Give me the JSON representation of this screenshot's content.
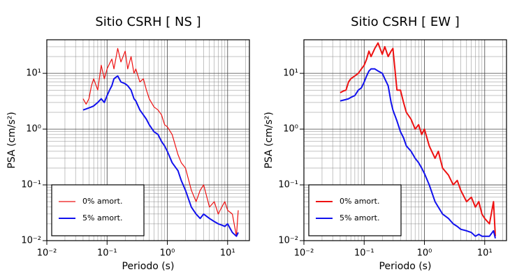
{
  "chart_data": [
    {
      "type": "line",
      "title": "Sitio CSRH [ NS ]",
      "xlabel": "Periodo (s)",
      "ylabel": "PSA (cm/s²)",
      "xscale": "log",
      "yscale": "log",
      "grid": true,
      "minor_grid": true,
      "legend": "lower left",
      "xlim": [
        0.01,
        23
      ],
      "ylim": [
        0.01,
        40
      ],
      "xticks": [
        {
          "value": 0.01,
          "label": "10⁻²"
        },
        {
          "value": 0.1,
          "label": "10⁻¹"
        },
        {
          "value": 1,
          "label": "10⁰"
        },
        {
          "value": 10,
          "label": "10¹"
        }
      ],
      "yticks": [
        {
          "value": 0.01,
          "label": "10⁻²"
        },
        {
          "value": 0.1,
          "label": "10⁻¹"
        },
        {
          "value": 1,
          "label": "10⁰"
        },
        {
          "value": 10,
          "label": "10¹"
        }
      ],
      "x": [
        0.04,
        0.045,
        0.05,
        0.055,
        0.06,
        0.07,
        0.08,
        0.09,
        0.1,
        0.11,
        0.12,
        0.13,
        0.15,
        0.17,
        0.2,
        0.22,
        0.25,
        0.28,
        0.3,
        0.35,
        0.4,
        0.45,
        0.5,
        0.6,
        0.7,
        0.8,
        0.9,
        1,
        1.2,
        1.5,
        1.7,
        2,
        2.5,
        3,
        3.5,
        4,
        5,
        6,
        7,
        8,
        9,
        10,
        12,
        14,
        15
      ],
      "series": [
        {
          "name": "0% amort.",
          "color": "#ee1111",
          "width": 1.2,
          "values": [
            3.5,
            2.8,
            3.5,
            6,
            8,
            5,
            14,
            8,
            12,
            15,
            18,
            12,
            28,
            16,
            25,
            12,
            20,
            10,
            12,
            7,
            8,
            5,
            3.5,
            2.5,
            2.2,
            1.8,
            1.2,
            1.1,
            0.8,
            0.35,
            0.25,
            0.2,
            0.08,
            0.05,
            0.08,
            0.1,
            0.04,
            0.05,
            0.03,
            0.04,
            0.05,
            0.035,
            0.03,
            0.012,
            0.035
          ]
        },
        {
          "name": "5% amort.",
          "color": "#1111ee",
          "width": 2,
          "values": [
            2.2,
            2.3,
            2.4,
            2.5,
            2.6,
            3,
            3.5,
            3,
            4,
            5,
            6,
            8,
            9,
            7,
            6.5,
            6,
            5,
            3.5,
            3.2,
            2.2,
            1.8,
            1.5,
            1.2,
            0.9,
            0.8,
            0.6,
            0.5,
            0.4,
            0.25,
            0.18,
            0.12,
            0.08,
            0.04,
            0.03,
            0.025,
            0.03,
            0.025,
            0.022,
            0.02,
            0.019,
            0.018,
            0.02,
            0.014,
            0.012,
            0.014
          ]
        }
      ]
    },
    {
      "type": "line",
      "title": "Sitio CSRH [ EW ]",
      "xlabel": "Periodo (s)",
      "ylabel": "PSA (cm/s²)",
      "xscale": "log",
      "yscale": "log",
      "grid": true,
      "minor_grid": true,
      "legend": "lower left",
      "xlim": [
        0.01,
        23
      ],
      "ylim": [
        0.01,
        40
      ],
      "xticks": [
        {
          "value": 0.01,
          "label": "10⁻²"
        },
        {
          "value": 0.1,
          "label": "10⁻¹"
        },
        {
          "value": 1,
          "label": "10⁰"
        },
        {
          "value": 10,
          "label": "10¹"
        }
      ],
      "yticks": [
        {
          "value": 0.01,
          "label": "10⁻²"
        },
        {
          "value": 0.1,
          "label": "10⁻¹"
        },
        {
          "value": 1,
          "label": "10⁰"
        },
        {
          "value": 10,
          "label": "10¹"
        }
      ],
      "x": [
        0.04,
        0.045,
        0.05,
        0.055,
        0.06,
        0.07,
        0.08,
        0.09,
        0.1,
        0.11,
        0.12,
        0.13,
        0.15,
        0.17,
        0.2,
        0.22,
        0.25,
        0.28,
        0.3,
        0.35,
        0.4,
        0.45,
        0.5,
        0.6,
        0.7,
        0.8,
        0.9,
        1,
        1.2,
        1.5,
        1.7,
        2,
        2.5,
        3,
        3.5,
        4,
        5,
        6,
        7,
        8,
        9,
        10,
        12,
        14,
        15
      ],
      "series": [
        {
          "name": "0% amort.",
          "color": "#ee1111",
          "width": 2,
          "values": [
            4.5,
            4.8,
            5,
            7,
            8,
            9,
            10,
            12,
            14,
            18,
            25,
            20,
            28,
            35,
            22,
            30,
            20,
            25,
            28,
            5,
            5,
            3,
            2,
            1.5,
            1,
            1.2,
            0.8,
            1,
            0.5,
            0.3,
            0.4,
            0.2,
            0.15,
            0.1,
            0.12,
            0.08,
            0.05,
            0.06,
            0.04,
            0.05,
            0.03,
            0.025,
            0.02,
            0.05,
            0.012
          ]
        },
        {
          "name": "5% amort.",
          "color": "#1111ee",
          "width": 2,
          "values": [
            3.2,
            3.3,
            3.4,
            3.5,
            3.7,
            4,
            5,
            5.5,
            7,
            9,
            11,
            12,
            12,
            11,
            10,
            8,
            6,
            3,
            2.2,
            1.4,
            0.9,
            0.7,
            0.5,
            0.4,
            0.3,
            0.25,
            0.2,
            0.16,
            0.1,
            0.05,
            0.04,
            0.03,
            0.025,
            0.02,
            0.018,
            0.016,
            0.015,
            0.014,
            0.012,
            0.013,
            0.012,
            0.012,
            0.012,
            0.015,
            0.011
          ]
        }
      ]
    }
  ]
}
